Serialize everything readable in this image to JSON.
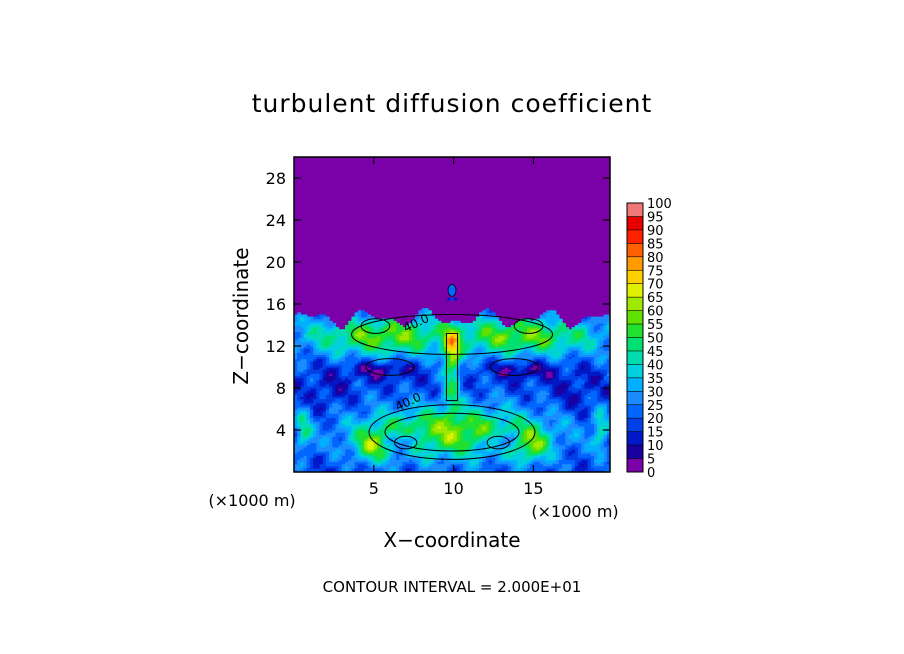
{
  "chart_data": {
    "type": "heatmap",
    "title": "turbulent diffusion coefficient",
    "xlabel": "X−coordinate",
    "ylabel": "Z−coordinate",
    "x_unit": "(×1000 m)",
    "y_unit": "(×1000 m)",
    "xlim": [
      0,
      19.8
    ],
    "ylim": [
      0,
      30
    ],
    "x_ticks": [
      5,
      10,
      15
    ],
    "y_ticks": [
      4,
      8,
      12,
      16,
      20,
      24,
      28
    ],
    "footer": "CONTOUR INTERVAL = 2.000E+01",
    "contour_labels": [
      {
        "text": "40.0",
        "x": 7.0,
        "z": 13.3
      },
      {
        "text": "40.0",
        "x": 6.5,
        "z": 5.8
      }
    ],
    "colorbar": {
      "levels": [
        0,
        5,
        10,
        15,
        20,
        25,
        30,
        35,
        40,
        45,
        50,
        55,
        60,
        65,
        70,
        75,
        80,
        85,
        90,
        95,
        100
      ],
      "colors": [
        "#7a00a8",
        "#1a00a0",
        "#0018c8",
        "#0040e6",
        "#0066ff",
        "#1a8cff",
        "#00b0ff",
        "#00cfe0",
        "#00dcb0",
        "#00e070",
        "#20e030",
        "#60e000",
        "#a0e800",
        "#e0f000",
        "#ffd000",
        "#ff9a00",
        "#ff6000",
        "#ff2000",
        "#e80000",
        "#f07878"
      ]
    },
    "background_value": 0
  }
}
